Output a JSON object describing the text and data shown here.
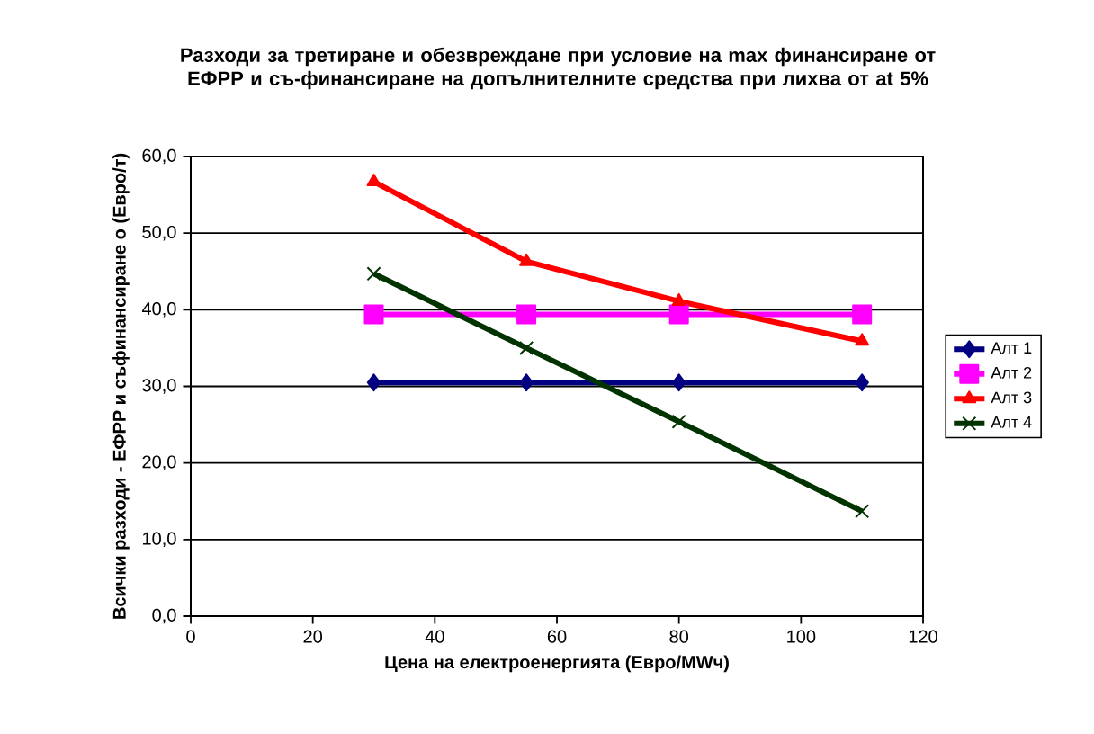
{
  "chart_data": {
    "type": "line",
    "title": "Разходи за третиране и обезвреждане при условие на max финансиране от ЕФРР и съ-финансиране на допълнителните средства при лихва от at 5%",
    "xlabel": "Цена на електроенергията (Евро/MWч)",
    "ylabel": "Всички разходи - ЕФРР и съфинансиране о (Евро/т)",
    "x": [
      30,
      55,
      80,
      110
    ],
    "series": [
      {
        "name": "Алт 1",
        "color": "#000080",
        "marker": "diamond",
        "values": [
          30.5,
          30.5,
          30.5,
          30.5
        ]
      },
      {
        "name": "Алт 2",
        "color": "#ff00ff",
        "marker": "square",
        "values": [
          39.4,
          39.4,
          39.4,
          39.4
        ]
      },
      {
        "name": "Алт 3",
        "color": "#ff0000",
        "marker": "triangle",
        "values": [
          56.7,
          46.3,
          41.1,
          35.9
        ]
      },
      {
        "name": "Алт 4",
        "color": "#003300",
        "marker": "cross",
        "values": [
          44.7,
          35.0,
          25.4,
          13.7
        ]
      }
    ],
    "xlim": [
      0,
      120
    ],
    "xticks": [
      0,
      20,
      40,
      60,
      80,
      100,
      120
    ],
    "ylim": [
      0,
      60
    ],
    "yticks": [
      {
        "value": 0,
        "label": "0,0"
      },
      {
        "value": 10,
        "label": "10,0"
      },
      {
        "value": 20,
        "label": "20,0"
      },
      {
        "value": 30,
        "label": "30,0"
      },
      {
        "value": 40,
        "label": "40,0"
      },
      {
        "value": 50,
        "label": "50,0"
      },
      {
        "value": 60,
        "label": "60,0"
      }
    ],
    "grid": "y",
    "legend": "right",
    "line_style": "solid"
  }
}
